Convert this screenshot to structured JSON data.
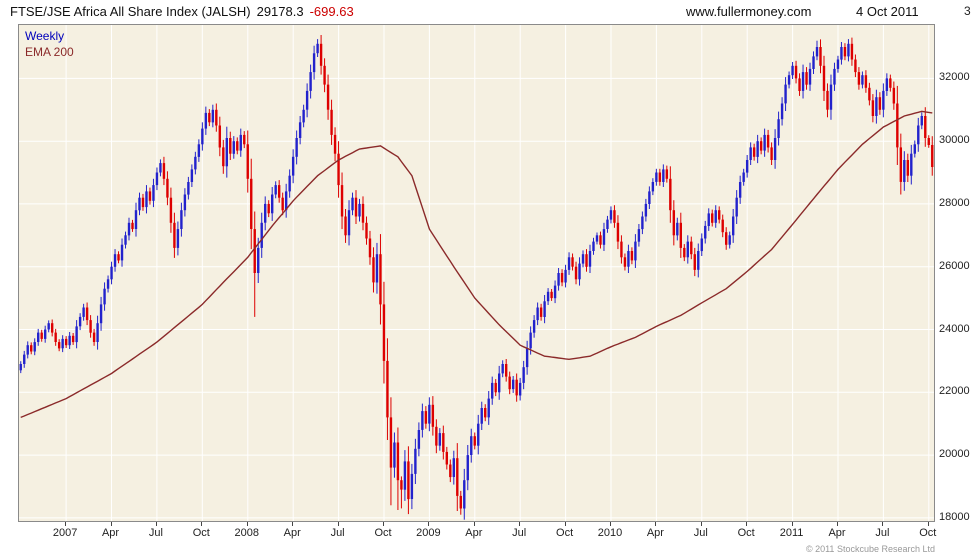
{
  "header": {
    "title": "FTSE/JSE Africa All Share Index (JALSH)",
    "last_price": "29178.3",
    "change": "-699.63",
    "website": "www.fullermoney.com",
    "date": "4 Oct 2011",
    "partial_top_label": "3"
  },
  "legend": {
    "series": "Weekly",
    "overlay": "EMA 200"
  },
  "footer": {
    "copyright": "© 2011 Stockcube Research Ltd"
  },
  "colors": {
    "up_candle": "#2222cc",
    "down_candle": "#dd0000",
    "ema_line": "#8b2a2a",
    "plot_background": "#f5f0e1",
    "grid": "#ffffff",
    "change_text": "#cc0000",
    "legend_weekly": "#0000bb"
  },
  "chart_data": {
    "type": "candlestick",
    "title": "FTSE/JSE Africa All Share Index (JALSH)",
    "timeframe": "Weekly",
    "overlay": "EMA 200",
    "last_close": 29178.3,
    "change": -699.63,
    "y_ticks": [
      32000,
      30000,
      28000,
      26000,
      24000,
      22000,
      20000,
      18000
    ],
    "y_domain": [
      17900,
      33700
    ],
    "x_tick_labels": [
      "2007",
      "Apr",
      "Jul",
      "Oct",
      "2008",
      "Apr",
      "Jul",
      "Oct",
      "2009",
      "Apr",
      "Jul",
      "Oct",
      "2010",
      "Apr",
      "Jul",
      "Oct",
      "2011",
      "Apr",
      "Jul",
      "Oct"
    ],
    "x_tick_weeks": [
      13,
      26,
      39,
      52,
      65,
      78,
      91,
      104,
      117,
      130,
      143,
      156,
      169,
      182,
      195,
      208,
      221,
      234,
      247,
      260
    ],
    "first_open": 22700,
    "weekly_closes": [
      22900,
      23200,
      23500,
      23300,
      23600,
      23900,
      23700,
      24000,
      24200,
      23900,
      23600,
      23400,
      23700,
      23500,
      23800,
      23600,
      24100,
      24400,
      24700,
      24300,
      23900,
      23600,
      24200,
      24800,
      25300,
      25600,
      26000,
      26400,
      26200,
      26700,
      27000,
      27400,
      27200,
      27800,
      28200,
      27900,
      28400,
      28100,
      28600,
      29000,
      29300,
      28800,
      28200,
      27400,
      26600,
      27200,
      27800,
      28300,
      28700,
      29100,
      29500,
      29900,
      30400,
      30900,
      30600,
      31000,
      30500,
      29800,
      29200,
      30100,
      29600,
      30000,
      29700,
      30200,
      29900,
      28800,
      27200,
      25800,
      26600,
      27400,
      28000,
      27700,
      28300,
      28600,
      28200,
      27800,
      28400,
      28900,
      29500,
      30100,
      30600,
      31000,
      31600,
      32200,
      32800,
      33100,
      32400,
      31800,
      31000,
      30200,
      29600,
      28600,
      27600,
      27000,
      27800,
      28200,
      27600,
      28000,
      27400,
      26900,
      26300,
      25500,
      26400,
      24800,
      23000,
      21200,
      19600,
      20400,
      19200,
      18900,
      19800,
      18600,
      19400,
      20200,
      20800,
      21400,
      21000,
      21600,
      20900,
      20300,
      20700,
      20100,
      19700,
      19300,
      19900,
      18700,
      18300,
      19200,
      20000,
      20600,
      20300,
      21000,
      21500,
      21200,
      21800,
      22300,
      22000,
      22600,
      22900,
      22500,
      22100,
      22400,
      21900,
      22300,
      22800,
      23400,
      23900,
      24300,
      24700,
      24400,
      24900,
      25200,
      25000,
      25400,
      25800,
      25500,
      25900,
      26300,
      26000,
      25600,
      26100,
      26400,
      26000,
      26500,
      26800,
      27000,
      26700,
      27200,
      27500,
      27800,
      27400,
      26800,
      26300,
      26000,
      26500,
      26200,
      26800,
      27200,
      27600,
      28000,
      28400,
      28700,
      29000,
      28700,
      29100,
      28800,
      27800,
      27000,
      27400,
      26600,
      26300,
      26800,
      26400,
      25900,
      26500,
      26900,
      27300,
      27700,
      27400,
      27800,
      27500,
      27100,
      26700,
      27000,
      27600,
      28200,
      28700,
      29000,
      29400,
      29800,
      29500,
      30000,
      29700,
      30200,
      29800,
      29400,
      30100,
      30700,
      31200,
      31800,
      32100,
      32400,
      32000,
      31600,
      32200,
      31800,
      32300,
      32700,
      33000,
      32400,
      31600,
      31000,
      31800,
      32300,
      32600,
      33000,
      32700,
      33100,
      32600,
      32200,
      31800,
      32100,
      31700,
      31300,
      30800,
      31400,
      31000,
      31600,
      32000,
      31700,
      31200,
      29800,
      28700,
      29400,
      28900,
      29600,
      29900,
      30500,
      30800,
      30100,
      29877.9,
      29178.3
    ],
    "wick_overrides": {
      "67": {
        "low": 24400
      },
      "85": {
        "high": 33250
      },
      "106": {
        "low": 18400
      },
      "108": {
        "low": 18250
      },
      "109": {
        "low": 18300
      },
      "126": {
        "low": 18100
      },
      "228": {
        "high": 33200
      },
      "237": {
        "high": 33250
      },
      "252": {
        "low": 28300
      }
    },
    "ema_keypoints": [
      [
        0,
        21200
      ],
      [
        13,
        21800
      ],
      [
        26,
        22600
      ],
      [
        39,
        23600
      ],
      [
        52,
        24800
      ],
      [
        58,
        25500
      ],
      [
        65,
        26300
      ],
      [
        72,
        27300
      ],
      [
        78,
        28100
      ],
      [
        85,
        28900
      ],
      [
        91,
        29400
      ],
      [
        97,
        29750
      ],
      [
        103,
        29850
      ],
      [
        108,
        29500
      ],
      [
        112,
        28900
      ],
      [
        117,
        27200
      ],
      [
        124,
        26000
      ],
      [
        130,
        25000
      ],
      [
        137,
        24150
      ],
      [
        143,
        23500
      ],
      [
        150,
        23150
      ],
      [
        157,
        23050
      ],
      [
        163,
        23150
      ],
      [
        169,
        23450
      ],
      [
        176,
        23750
      ],
      [
        182,
        24100
      ],
      [
        189,
        24450
      ],
      [
        195,
        24850
      ],
      [
        202,
        25300
      ],
      [
        208,
        25850
      ],
      [
        215,
        26550
      ],
      [
        221,
        27350
      ],
      [
        228,
        28300
      ],
      [
        234,
        29100
      ],
      [
        241,
        29900
      ],
      [
        247,
        30450
      ],
      [
        253,
        30800
      ],
      [
        258,
        30950
      ],
      [
        261,
        30900
      ]
    ]
  }
}
